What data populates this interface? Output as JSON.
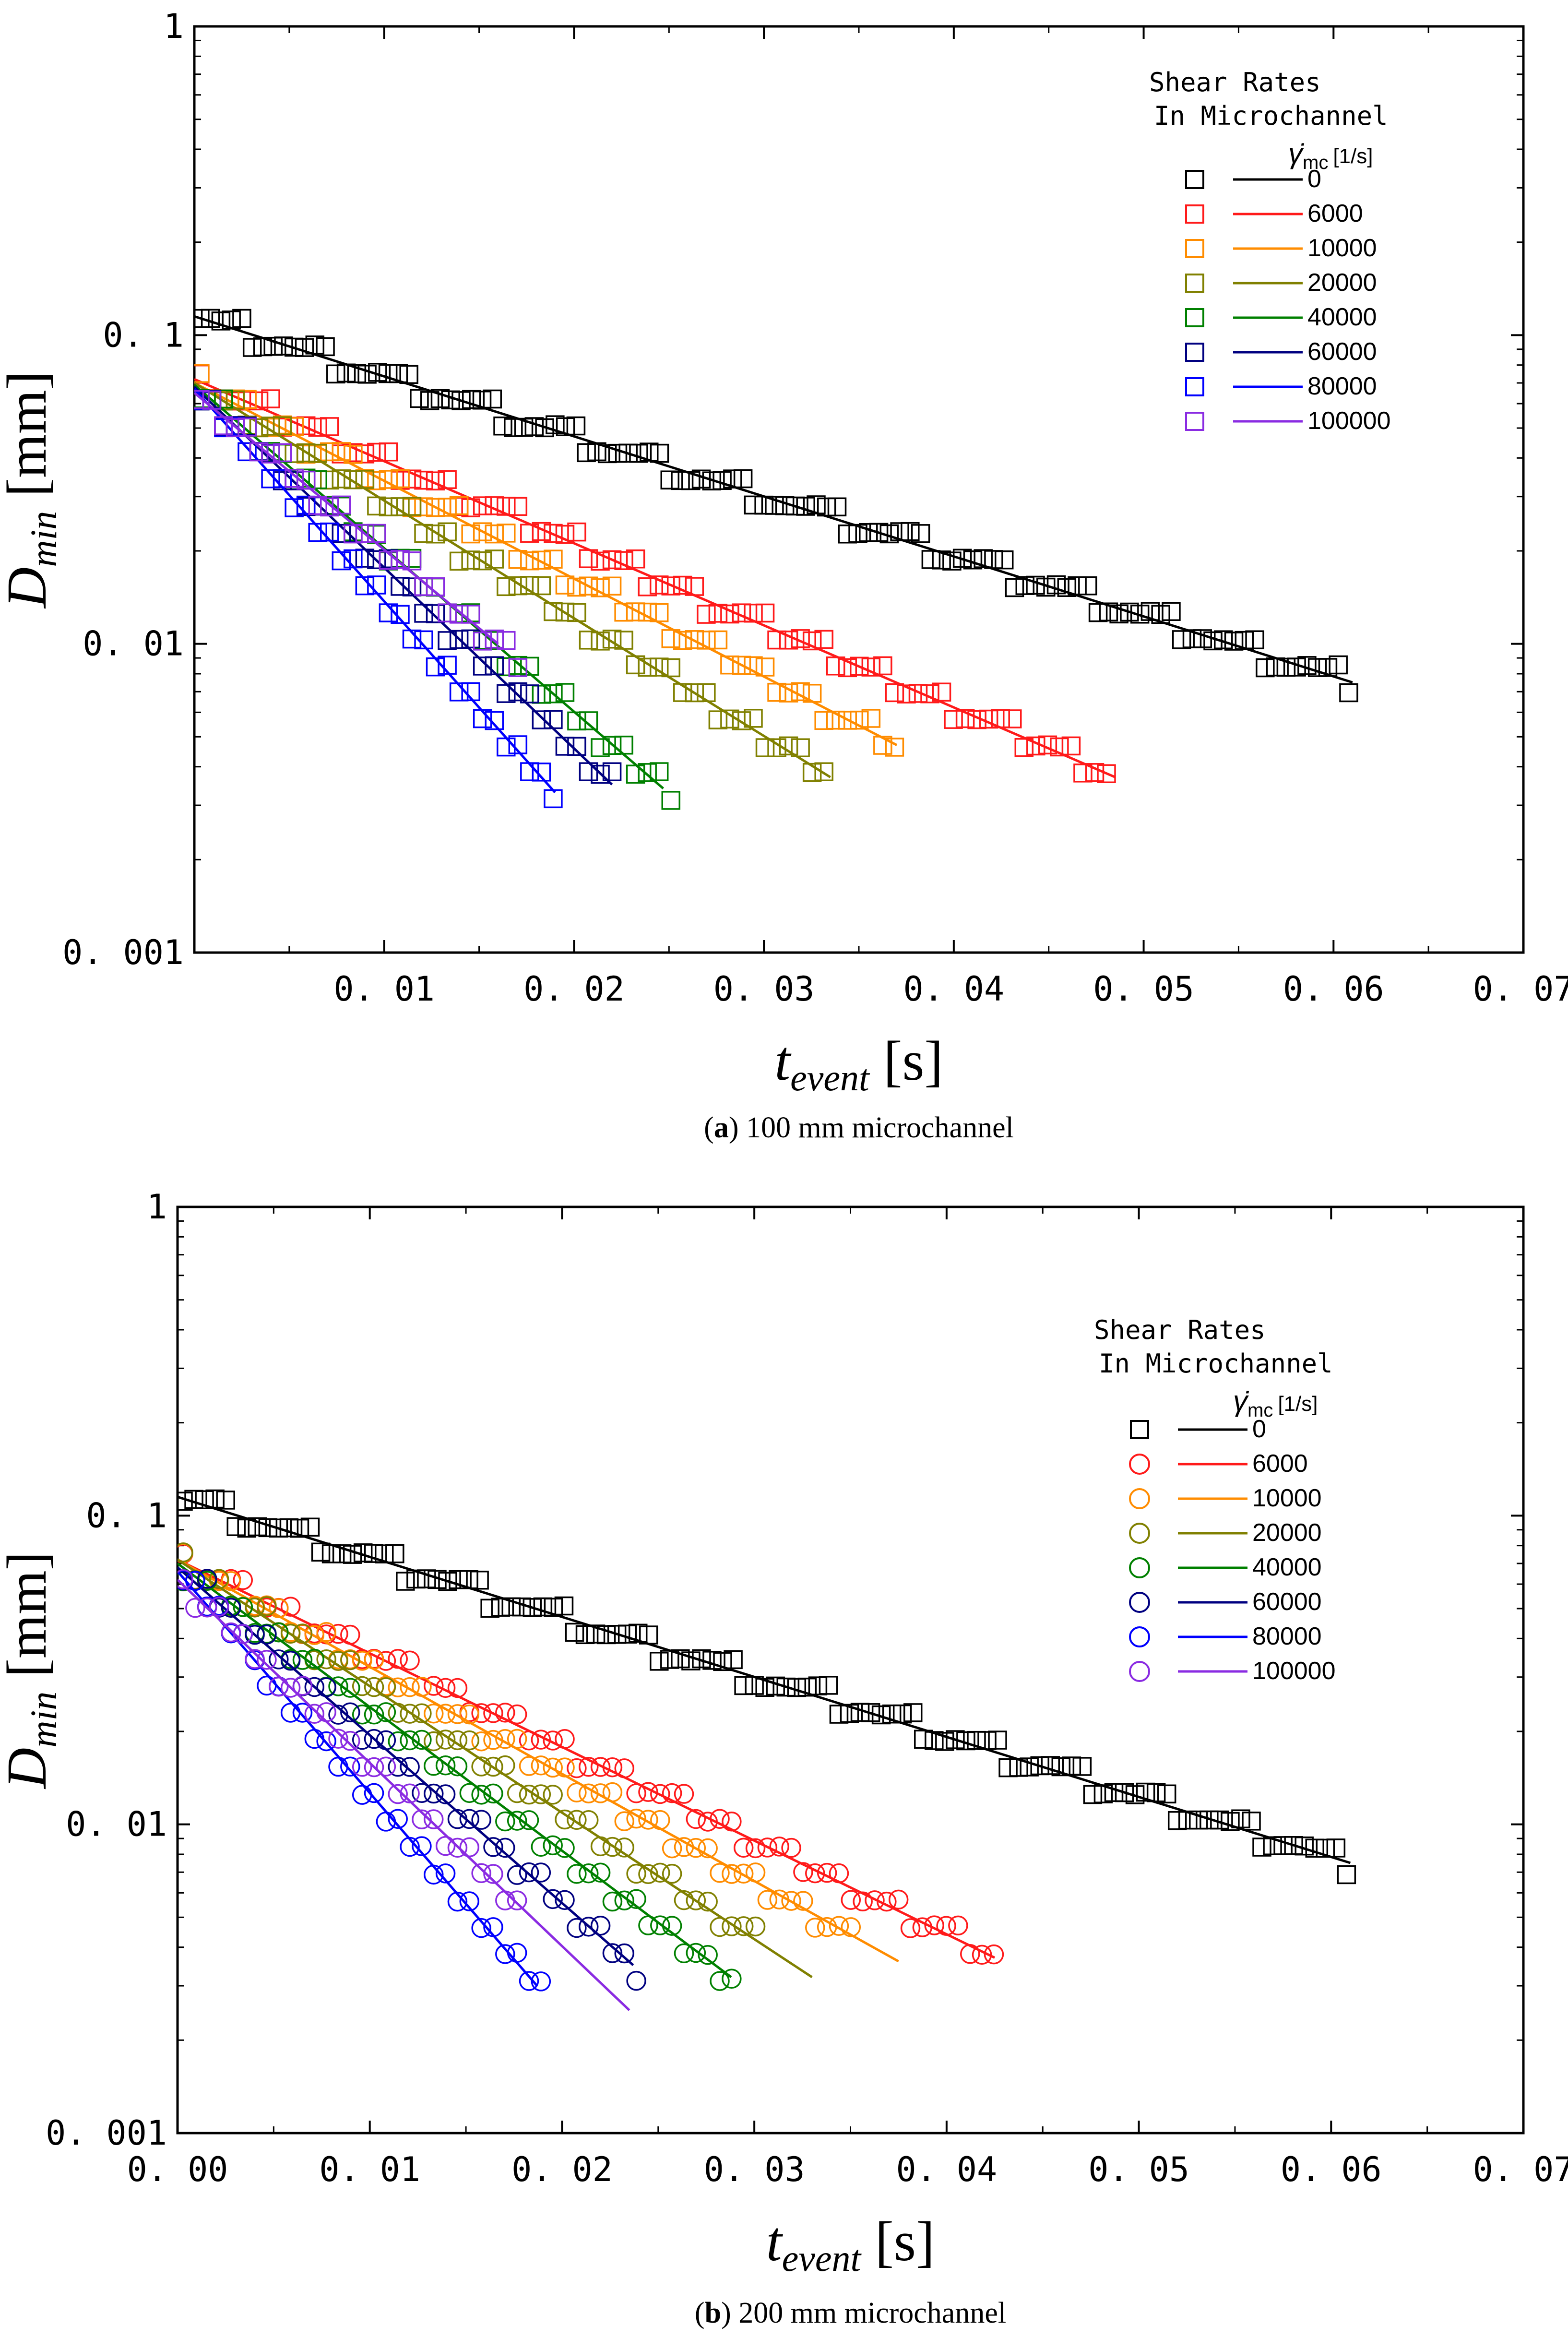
{
  "chart_data": [
    {
      "type": "scatter",
      "panel": "a",
      "caption_label": "a",
      "caption_text": " 100 mm microchannel",
      "xlabel_main": "t",
      "xlabel_sub": "event",
      "xlabel_unit": " [s]",
      "ylabel_main": "D",
      "ylabel_sub": "min",
      "ylabel_unit": " [mm]",
      "xlim": [
        0,
        0.07
      ],
      "ylim": [
        0.001,
        1
      ],
      "yscale": "log",
      "xticks": [
        {
          "v": 0.01,
          "label": "0. 01"
        },
        {
          "v": 0.02,
          "label": "0. 02"
        },
        {
          "v": 0.03,
          "label": "0. 03"
        },
        {
          "v": 0.04,
          "label": "0. 04"
        },
        {
          "v": 0.05,
          "label": "0. 05"
        },
        {
          "v": 0.06,
          "label": "0. 06"
        },
        {
          "v": 0.07,
          "label": "0. 07"
        }
      ],
      "yticks": [
        {
          "v": 1,
          "label": "1"
        },
        {
          "v": 0.1,
          "label": "0. 1"
        },
        {
          "v": 0.01,
          "label": "0. 01"
        },
        {
          "v": 0.001,
          "label": "0. 001"
        }
      ],
      "legend_title_1": "Shear Rates",
      "legend_title_2": "In Microchannel",
      "legend_symbol": "γ̇",
      "legend_subscript": "mc",
      "legend_unit": "[1/s]",
      "marker": "square",
      "series": [
        {
          "name": "0",
          "color": "#000000",
          "fit_start": [
            0.0,
            0.115
          ],
          "fit_end": [
            0.061,
            0.0075
          ],
          "pts_end": 0.061
        },
        {
          "name": "6000",
          "color": "#ff1a1a",
          "fit_start": [
            0.0,
            0.072
          ],
          "fit_end": [
            0.0485,
            0.0037
          ],
          "pts_end": 0.0485
        },
        {
          "name": "10000",
          "color": "#ff8c00",
          "fit_start": [
            0.0,
            0.07
          ],
          "fit_end": [
            0.037,
            0.0047
          ],
          "pts_end": 0.037
        },
        {
          "name": "20000",
          "color": "#808000",
          "fit_start": [
            0.0,
            0.07
          ],
          "fit_end": [
            0.0335,
            0.0037
          ],
          "pts_end": 0.0335
        },
        {
          "name": "40000",
          "color": "#008000",
          "fit_start": [
            0.0,
            0.069
          ],
          "fit_end": [
            0.0247,
            0.0034
          ],
          "pts_end": 0.0252
        },
        {
          "name": "60000",
          "color": "#000080",
          "fit_start": [
            0.0,
            0.068
          ],
          "fit_end": [
            0.022,
            0.0035
          ],
          "pts_end": 0.0225
        },
        {
          "name": "80000",
          "color": "#0000ff",
          "fit_start": [
            0.0,
            0.067
          ],
          "fit_end": [
            0.019,
            0.0033
          ],
          "pts_end": 0.019
        },
        {
          "name": "100000",
          "color": "#8a2be2",
          "fit_start": [
            0.0,
            0.065
          ],
          "fit_end": [
            0.016,
            0.01
          ],
          "pts_end": 0.0175
        }
      ]
    },
    {
      "type": "scatter",
      "panel": "b",
      "caption_label": "b",
      "caption_text": " 200 mm microchannel",
      "xlabel_main": "t",
      "xlabel_sub": "event",
      "xlabel_unit": " [s]",
      "ylabel_main": "D",
      "ylabel_sub": "min",
      "ylabel_unit": " [mm]",
      "xlim": [
        0,
        0.07
      ],
      "ylim": [
        0.001,
        1
      ],
      "yscale": "log",
      "xticks": [
        {
          "v": 0.0,
          "label": "0. 00"
        },
        {
          "v": 0.01,
          "label": "0. 01"
        },
        {
          "v": 0.02,
          "label": "0. 02"
        },
        {
          "v": 0.03,
          "label": "0. 03"
        },
        {
          "v": 0.04,
          "label": "0. 04"
        },
        {
          "v": 0.05,
          "label": "0. 05"
        },
        {
          "v": 0.06,
          "label": "0. 06"
        },
        {
          "v": 0.07,
          "label": "0. 07"
        }
      ],
      "yticks": [
        {
          "v": 1,
          "label": "1"
        },
        {
          "v": 0.1,
          "label": "0. 1"
        },
        {
          "v": 0.01,
          "label": "0. 01"
        },
        {
          "v": 0.001,
          "label": "0. 001"
        }
      ],
      "legend_title_1": "Shear Rates",
      "legend_title_2": "In Microchannel",
      "legend_symbol": "γ̇",
      "legend_subscript": "mc",
      "legend_unit": "[1/s]",
      "marker": "circle",
      "series": [
        {
          "name": "0",
          "color": "#000000",
          "fit_start": [
            0.0,
            0.115
          ],
          "fit_end": [
            0.061,
            0.0075
          ],
          "pts_end": 0.061,
          "marker": "square"
        },
        {
          "name": "6000",
          "color": "#ff1a1a",
          "fit_start": [
            0.0,
            0.072
          ],
          "fit_end": [
            0.0425,
            0.0037
          ],
          "pts_end": 0.0425
        },
        {
          "name": "10000",
          "color": "#ff8c00",
          "fit_start": [
            0.0,
            0.072
          ],
          "fit_end": [
            0.0375,
            0.0036
          ],
          "pts_end": 0.0355
        },
        {
          "name": "20000",
          "color": "#808000",
          "fit_start": [
            0.0,
            0.072
          ],
          "fit_end": [
            0.033,
            0.0032
          ],
          "pts_end": 0.0305
        },
        {
          "name": "40000",
          "color": "#008000",
          "fit_start": [
            0.0,
            0.07
          ],
          "fit_end": [
            0.0288,
            0.0032
          ],
          "pts_end": 0.029
        },
        {
          "name": "60000",
          "color": "#000080",
          "fit_start": [
            0.0,
            0.068
          ],
          "fit_end": [
            0.0237,
            0.0035
          ],
          "pts_end": 0.024
        },
        {
          "name": "80000",
          "color": "#0000ff",
          "fit_start": [
            0.0,
            0.066
          ],
          "fit_end": [
            0.0187,
            0.003
          ],
          "pts_end": 0.019
        },
        {
          "name": "100000",
          "color": "#8a2be2",
          "fit_start": [
            0.0,
            0.062
          ],
          "fit_end": [
            0.0235,
            0.0025
          ],
          "pts_end": 0.018
        }
      ]
    }
  ]
}
